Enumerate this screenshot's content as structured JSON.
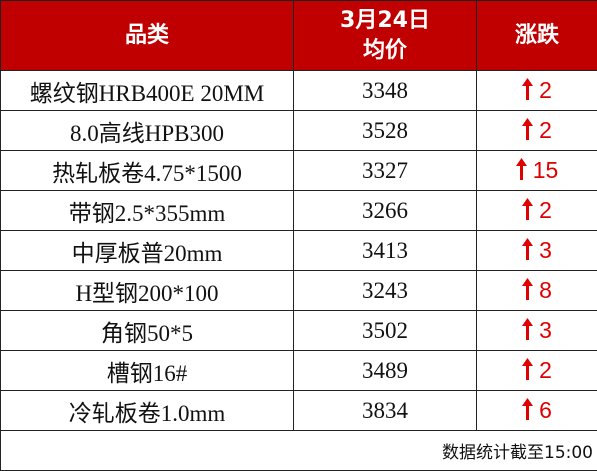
{
  "header": [
    "品类",
    [
      "3月24日",
      "均价"
    ],
    "涨跌"
  ],
  "rows": [
    [
      "螺纹钢HRB400E 20MM",
      "3348",
      "2"
    ],
    [
      "8.0高线HPB300",
      "3528",
      "2"
    ],
    [
      "热轧板卷4.75*1500",
      "3327",
      "15"
    ],
    [
      "带钢2.5*355mm",
      "3266",
      "2"
    ],
    [
      "中厚板普20mm",
      "3413",
      "3"
    ],
    [
      "H型钢200*100",
      "3243",
      "8"
    ],
    [
      "角钢50*5",
      "3502",
      "3"
    ],
    [
      "槽钢16#",
      "3489",
      "2"
    ],
    [
      "冷轧板卷1.0mm",
      "3834",
      "6"
    ]
  ],
  "footer": "数据统计截至15:00"
}
